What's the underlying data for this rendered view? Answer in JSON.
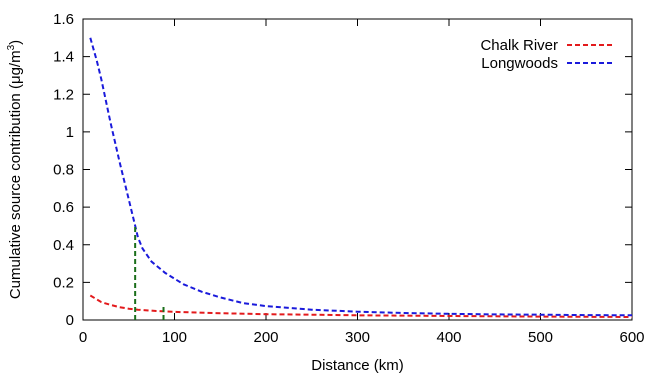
{
  "chart_data": {
    "type": "line",
    "title": "",
    "xlabel": "Distance (km)",
    "ylabel": "Cumulative source contribution (μg/m",
    "ylabel_sup": "3",
    "ylabel_tail": ")",
    "xlim": [
      0,
      600
    ],
    "ylim": [
      0,
      1.6
    ],
    "xticks": [
      0,
      100,
      200,
      300,
      400,
      500,
      600
    ],
    "yticks": [
      0,
      0.2,
      0.4,
      0.6,
      0.8,
      1,
      1.2,
      1.4,
      1.6
    ],
    "ytick_labels": [
      "0",
      "0.2",
      "0.4",
      "0.6",
      "0.8",
      "1",
      "1.2",
      "1.4",
      "1.6"
    ],
    "grid": false,
    "legend_position": "top-right",
    "series": [
      {
        "name": "Chalk River",
        "color": "#e31a1c",
        "style": "dashed",
        "x": [
          8,
          20,
          30,
          40,
          50,
          60,
          80,
          100,
          150,
          200,
          250,
          300,
          400,
          500,
          600
        ],
        "y": [
          0.13,
          0.095,
          0.08,
          0.068,
          0.06,
          0.055,
          0.048,
          0.043,
          0.036,
          0.031,
          0.028,
          0.025,
          0.021,
          0.018,
          0.016
        ]
      },
      {
        "name": "Longwoods",
        "color": "#1a1adb",
        "style": "dashed",
        "x": [
          8,
          15,
          20,
          30,
          40,
          50,
          57,
          60,
          65,
          75,
          90,
          110,
          130,
          150,
          175,
          200,
          250,
          300,
          350,
          400,
          450,
          500,
          550,
          600
        ],
        "y": [
          1.5,
          1.38,
          1.28,
          1.05,
          0.84,
          0.64,
          0.5,
          0.44,
          0.38,
          0.31,
          0.25,
          0.19,
          0.15,
          0.12,
          0.09,
          0.074,
          0.055,
          0.044,
          0.037,
          0.033,
          0.03,
          0.028,
          0.026,
          0.025
        ]
      }
    ],
    "markers": [
      {
        "x": 57,
        "y_top": 0.5,
        "color": "#1a6e1a",
        "style": "dashed"
      },
      {
        "x": 88,
        "y_top": 0.07,
        "color": "#1a6e1a",
        "style": "dashed"
      }
    ]
  }
}
